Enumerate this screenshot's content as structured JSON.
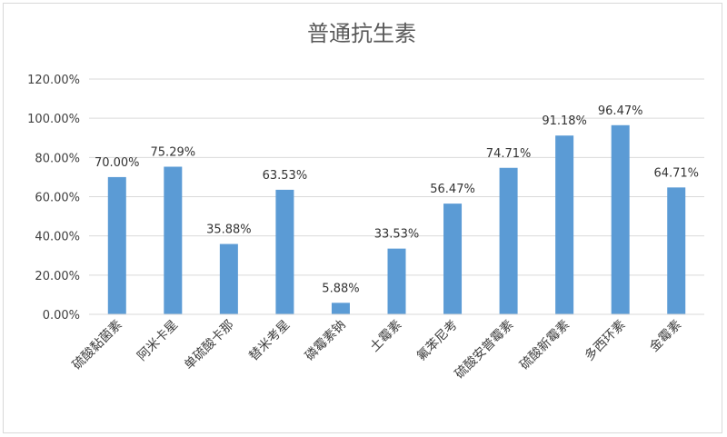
{
  "chart_data": {
    "type": "bar",
    "title": "普通抗生素",
    "categories": [
      "硫酸黏菌素",
      "阿米卡星",
      "单硫酸卡那",
      "替米考星",
      "磷霉素钠",
      "土霉素",
      "氟苯尼考",
      "硫酸安普霉素",
      "硫酸新霉素",
      "多西环素",
      "金霉素"
    ],
    "values": [
      70.0,
      75.29,
      35.88,
      63.53,
      5.88,
      33.53,
      56.47,
      74.71,
      91.18,
      96.47,
      64.71
    ],
    "data_labels": [
      "70.00%",
      "75.29%",
      "35.88%",
      "63.53%",
      "5.88%",
      "33.53%",
      "56.47%",
      "74.71%",
      "91.18%",
      "96.47%",
      "64.71%"
    ],
    "y_ticks": [
      "0.00%",
      "20.00%",
      "40.00%",
      "60.00%",
      "80.00%",
      "100.00%",
      "120.00%"
    ],
    "ylim": [
      0,
      120
    ],
    "grid": true,
    "legend": "none",
    "bar_color": "#5b9bd5",
    "gridline_color": "#d9d9d9"
  }
}
